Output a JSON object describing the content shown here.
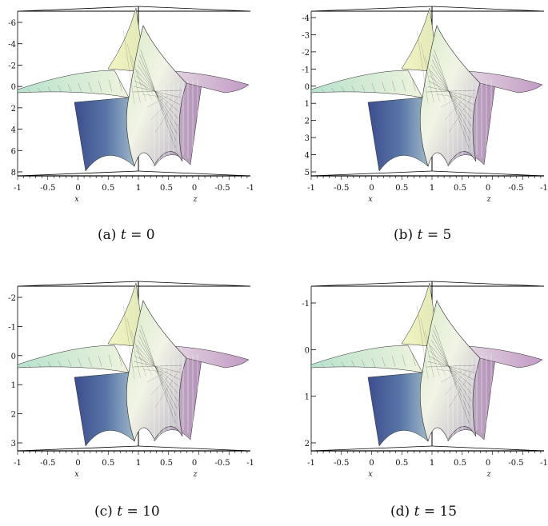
{
  "panels": [
    {
      "id": "a",
      "caption": {
        "label": "(a)",
        "variable": "t",
        "eq": "=",
        "value": "0"
      },
      "vertical_ticks": [
        "-6",
        "-4",
        "-2",
        "0",
        "2",
        "4",
        "6",
        "8"
      ],
      "x_ticks": [
        "-1",
        "-0.5",
        "0",
        "0.5",
        "1"
      ],
      "z_ticks": [
        "1",
        "0.5",
        "0",
        "-0.5",
        "-1"
      ],
      "x_name": "x",
      "z_name": "z"
    },
    {
      "id": "b",
      "caption": {
        "label": "(b)",
        "variable": "t",
        "eq": "=",
        "value": "5"
      },
      "vertical_ticks": [
        "-4",
        "-3",
        "-2",
        "-1",
        "0",
        "1",
        "2",
        "3",
        "4",
        "5"
      ],
      "x_ticks": [
        "-1",
        "-0.5",
        "0",
        "0.5",
        "1"
      ],
      "z_ticks": [
        "1",
        "0.5",
        "0",
        "-0.5",
        "-1"
      ],
      "x_name": "x",
      "z_name": "z"
    },
    {
      "id": "c",
      "caption": {
        "label": "(c)",
        "variable": "t",
        "eq": "=",
        "value": "10"
      },
      "vertical_ticks": [
        "-2",
        "-1",
        "0",
        "1",
        "2",
        "3"
      ],
      "x_ticks": [
        "-1",
        "-0.5",
        "0",
        "0.5",
        "1"
      ],
      "z_ticks": [
        "1",
        "0.5",
        "0",
        "-0.5",
        "-1"
      ],
      "x_name": "x",
      "z_name": "z"
    },
    {
      "id": "d",
      "caption": {
        "label": "(d)",
        "variable": "t",
        "eq": "=",
        "value": "15"
      },
      "vertical_ticks": [
        "-1",
        "0",
        "1",
        "2"
      ],
      "x_ticks": [
        "-1",
        "-0.5",
        "0",
        "0.5",
        "1"
      ],
      "z_ticks": [
        "1",
        "0.5",
        "0",
        "-0.5",
        "-1"
      ],
      "x_name": "x",
      "z_name": "z"
    }
  ],
  "colors": {
    "surface_light": "#f4f6da",
    "surface_green": "#c8e6c0",
    "surface_blue": "#3d4f8f",
    "surface_pink": "#d9c6de",
    "mesh": "#2a2a2a",
    "frame": "#000000"
  }
}
